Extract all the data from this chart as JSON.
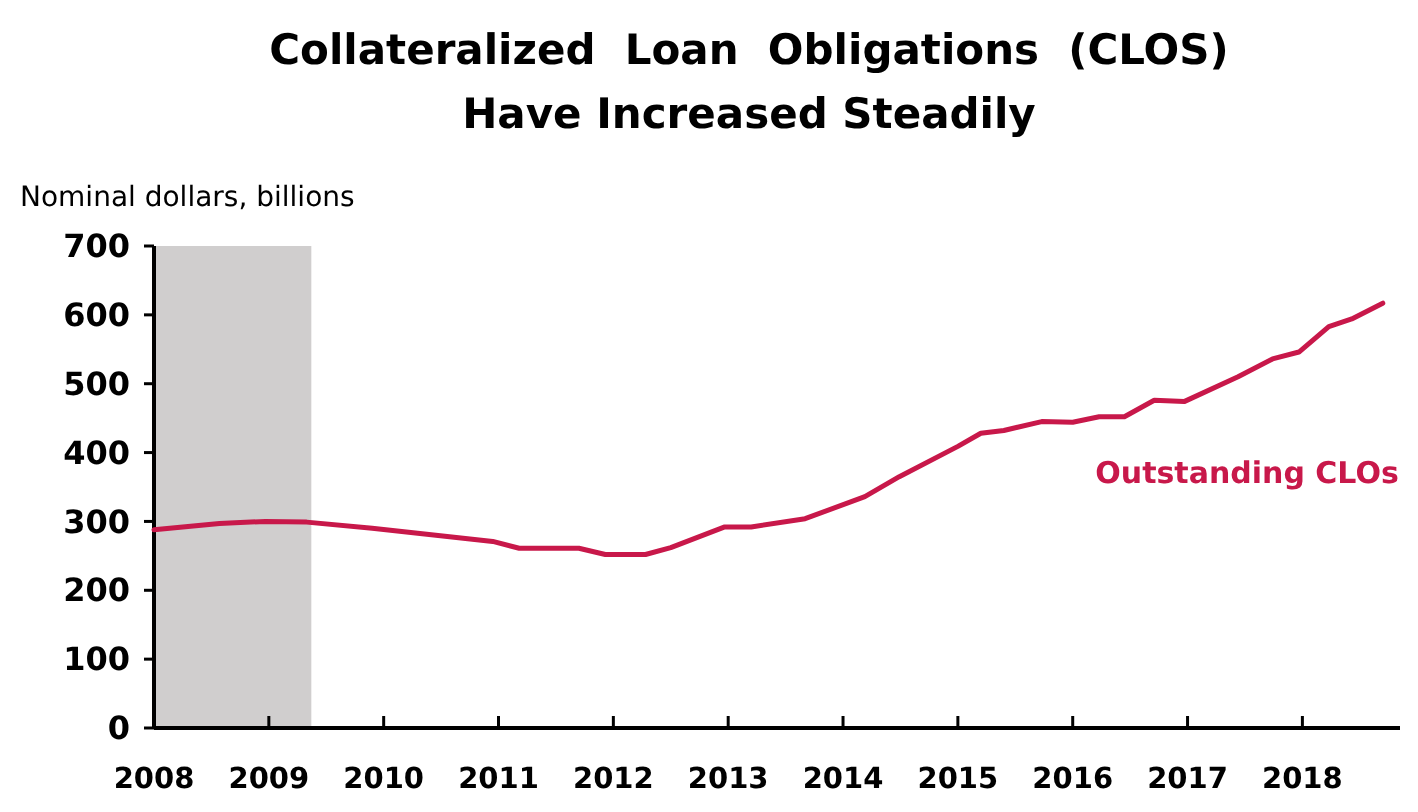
{
  "chart_data": {
    "type": "line",
    "title": "Collateralized  Loan  Obligations  (CLOS)\nHave Increased Steadily",
    "ylabel": "Nominal dollars, billions",
    "xlim": [
      2008,
      2018.85
    ],
    "xticks": [
      2008,
      2009,
      2010,
      2011,
      2012,
      2013,
      2014,
      2015,
      2016,
      2017,
      2018
    ],
    "ylim": [
      0,
      700
    ],
    "yticks": [
      0,
      100,
      200,
      300,
      400,
      500,
      600,
      700
    ],
    "grid": false,
    "legend": false,
    "line_style": "solid",
    "marker": "none",
    "bands": [
      {
        "axis": "x",
        "from": 2008,
        "to": 2009.37,
        "color": "#d0cece"
      }
    ],
    "series": [
      {
        "name": "Outstanding CLOs",
        "color": "#c8184a",
        "x": [
          2008.0,
          2008.57,
          2008.97,
          2009.33,
          2009.9,
          2010.95,
          2011.18,
          2011.7,
          2011.93,
          2012.28,
          2012.5,
          2012.97,
          2013.2,
          2013.67,
          2014.19,
          2014.49,
          2015.0,
          2015.2,
          2015.4,
          2015.73,
          2016.0,
          2016.23,
          2016.45,
          2016.71,
          2016.97,
          2017.44,
          2017.74,
          2017.97,
          2018.23,
          2018.43,
          2018.7
        ],
        "values": [
          288,
          297,
          300,
          299,
          290,
          271,
          261,
          261,
          252,
          252,
          262,
          292,
          292,
          304,
          336,
          365,
          409,
          428,
          432,
          445,
          444,
          452,
          452,
          476,
          474,
          510,
          536,
          546,
          583,
          594,
          617
        ]
      }
    ]
  }
}
